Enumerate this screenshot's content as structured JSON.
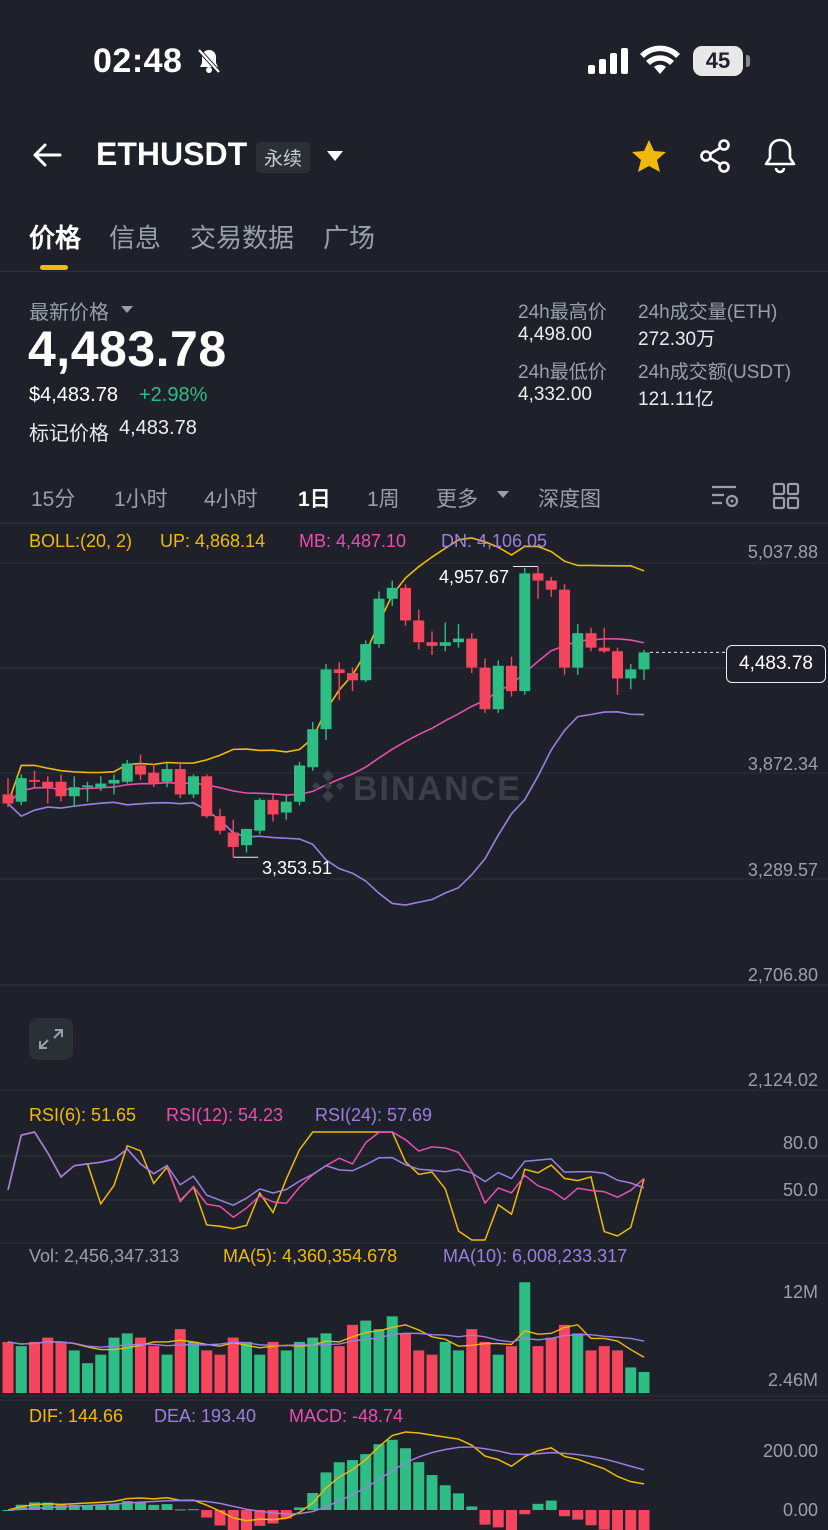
{
  "status_bar": {
    "time": "02:48",
    "battery": "45"
  },
  "header": {
    "pair": "ETHUSDT",
    "contract_type": "永续"
  },
  "tabs": [
    {
      "label": "价格"
    },
    {
      "label": "信息"
    },
    {
      "label": "交易数据"
    },
    {
      "label": "广场"
    }
  ],
  "ticker": {
    "latest_label": "最新价格",
    "last_price": "4,483.78",
    "usd_price": "$4,483.78",
    "change_pct": "+2.98%",
    "mark_label": "标记价格",
    "mark_price": "4,483.78",
    "high_label": "24h最高价",
    "high_value": "4,498.00",
    "low_label": "24h最低价",
    "low_value": "4,332.00",
    "vol_eth_label": "24h成交量(ETH)",
    "vol_eth_value": "272.30万",
    "vol_usdt_label": "24h成交额(USDT)",
    "vol_usdt_value": "121.11亿"
  },
  "intervals": {
    "items": [
      "15分",
      "1小时",
      "4小时",
      "1日",
      "1周",
      "更多",
      "深度图"
    ],
    "active": "1日"
  },
  "indicators": {
    "boll": {
      "name": "BOLL:(20, 2)",
      "up": "UP: 4,868.14",
      "mb": "MB: 4,487.10",
      "dn": "DN: 4,106.05"
    },
    "rsi": {
      "rsi6": "RSI(6): 51.65",
      "rsi12": "RSI(12): 54.23",
      "rsi24": "RSI(24): 57.69"
    },
    "vol": {
      "vol": "Vol: 2,456,347.313",
      "ma5": "MA(5): 4,360,354.678",
      "ma10": "MA(10): 6,008,233.317"
    },
    "macd": {
      "dif": "DIF: 144.66",
      "dea": "DEA: 193.40",
      "macd": "MACD: -48.74"
    }
  },
  "price_axis": [
    "5,037.88",
    "3,872.34",
    "3,289.57",
    "2,706.80",
    "2,124.02"
  ],
  "rsi_axis": [
    "80.0",
    "50.0"
  ],
  "vol_axis": [
    "12M",
    "2.46M"
  ],
  "macd_axis": [
    "200.00",
    "0.00"
  ],
  "current_price_tag": "4,483.78",
  "high_callout": "4,957.67",
  "low_callout": "3,353.51",
  "watermark": "BINANCE",
  "colors": {
    "up": "#2ebd85",
    "down": "#f6465d",
    "accent": "#f0b90b",
    "boll_up": "#f0b90b",
    "boll_mb": "#e84fb0",
    "boll_dn": "#9c7fe0"
  },
  "chart_data": {
    "type": "candlestick",
    "interval": "1D",
    "ylim": [
      2124.02,
      5037.88
    ],
    "candles": [
      {
        "o": 3700,
        "h": 3790,
        "l": 3630,
        "c": 3650
      },
      {
        "o": 3660,
        "h": 3810,
        "l": 3640,
        "c": 3790
      },
      {
        "o": 3780,
        "h": 3830,
        "l": 3740,
        "c": 3770
      },
      {
        "o": 3770,
        "h": 3800,
        "l": 3650,
        "c": 3740
      },
      {
        "o": 3770,
        "h": 3810,
        "l": 3660,
        "c": 3690
      },
      {
        "o": 3690,
        "h": 3800,
        "l": 3630,
        "c": 3740
      },
      {
        "o": 3740,
        "h": 3770,
        "l": 3660,
        "c": 3750
      },
      {
        "o": 3740,
        "h": 3800,
        "l": 3720,
        "c": 3760
      },
      {
        "o": 3760,
        "h": 3810,
        "l": 3700,
        "c": 3780
      },
      {
        "o": 3770,
        "h": 3890,
        "l": 3760,
        "c": 3870
      },
      {
        "o": 3860,
        "h": 3920,
        "l": 3780,
        "c": 3810
      },
      {
        "o": 3820,
        "h": 3870,
        "l": 3740,
        "c": 3760
      },
      {
        "o": 3770,
        "h": 3870,
        "l": 3740,
        "c": 3840
      },
      {
        "o": 3840,
        "h": 3880,
        "l": 3680,
        "c": 3700
      },
      {
        "o": 3700,
        "h": 3810,
        "l": 3680,
        "c": 3800
      },
      {
        "o": 3800,
        "h": 3810,
        "l": 3570,
        "c": 3580
      },
      {
        "o": 3580,
        "h": 3620,
        "l": 3480,
        "c": 3500
      },
      {
        "o": 3490,
        "h": 3560,
        "l": 3353.51,
        "c": 3410
      },
      {
        "o": 3420,
        "h": 3500,
        "l": 3380,
        "c": 3510
      },
      {
        "o": 3500,
        "h": 3680,
        "l": 3480,
        "c": 3670
      },
      {
        "o": 3670,
        "h": 3700,
        "l": 3550,
        "c": 3590
      },
      {
        "o": 3600,
        "h": 3700,
        "l": 3560,
        "c": 3660
      },
      {
        "o": 3660,
        "h": 3880,
        "l": 3640,
        "c": 3860
      },
      {
        "o": 3850,
        "h": 4100,
        "l": 3830,
        "c": 4060
      },
      {
        "o": 4060,
        "h": 4420,
        "l": 4000,
        "c": 4390
      },
      {
        "o": 4390,
        "h": 4430,
        "l": 4220,
        "c": 4370
      },
      {
        "o": 4370,
        "h": 4400,
        "l": 4270,
        "c": 4330
      },
      {
        "o": 4330,
        "h": 4550,
        "l": 4320,
        "c": 4530
      },
      {
        "o": 4530,
        "h": 4820,
        "l": 4510,
        "c": 4780
      },
      {
        "o": 4780,
        "h": 4880,
        "l": 4740,
        "c": 4840
      },
      {
        "o": 4840,
        "h": 4860,
        "l": 4630,
        "c": 4660
      },
      {
        "o": 4660,
        "h": 4720,
        "l": 4500,
        "c": 4540
      },
      {
        "o": 4540,
        "h": 4600,
        "l": 4470,
        "c": 4520
      },
      {
        "o": 4520,
        "h": 4650,
        "l": 4490,
        "c": 4540
      },
      {
        "o": 4540,
        "h": 4640,
        "l": 4510,
        "c": 4560
      },
      {
        "o": 4560,
        "h": 4590,
        "l": 4370,
        "c": 4400
      },
      {
        "o": 4400,
        "h": 4450,
        "l": 4150,
        "c": 4170
      },
      {
        "o": 4170,
        "h": 4440,
        "l": 4150,
        "c": 4410
      },
      {
        "o": 4410,
        "h": 4460,
        "l": 4240,
        "c": 4270
      },
      {
        "o": 4270,
        "h": 4950,
        "l": 4250,
        "c": 4920
      },
      {
        "o": 4920,
        "h": 4957.67,
        "l": 4780,
        "c": 4880
      },
      {
        "o": 4880,
        "h": 4900,
        "l": 4790,
        "c": 4830
      },
      {
        "o": 4830,
        "h": 4860,
        "l": 4360,
        "c": 4400
      },
      {
        "o": 4400,
        "h": 4640,
        "l": 4360,
        "c": 4590
      },
      {
        "o": 4590,
        "h": 4620,
        "l": 4490,
        "c": 4510
      },
      {
        "o": 4510,
        "h": 4620,
        "l": 4480,
        "c": 4490
      },
      {
        "o": 4490,
        "h": 4510,
        "l": 4250,
        "c": 4340
      },
      {
        "o": 4340,
        "h": 4420,
        "l": 4280,
        "c": 4390
      },
      {
        "o": 4390,
        "h": 4498,
        "l": 4332,
        "c": 4483.78
      }
    ],
    "volume": [
      6,
      5.5,
      6,
      6.5,
      6,
      5,
      3.5,
      4.5,
      6.5,
      7,
      6.5,
      5.5,
      4.5,
      7.5,
      6,
      5,
      4.5,
      6.5,
      6,
      4.5,
      6,
      5,
      6,
      6.5,
      7,
      5.5,
      8,
      8.5,
      7.5,
      9,
      7,
      5,
      4.5,
      6,
      5,
      7.5,
      6,
      4.5,
      5.5,
      13,
      5.5,
      6.5,
      8,
      7,
      5,
      5.5,
      5,
      3,
      2.46
    ],
    "vol_ylim": [
      0,
      13.5
    ]
  }
}
